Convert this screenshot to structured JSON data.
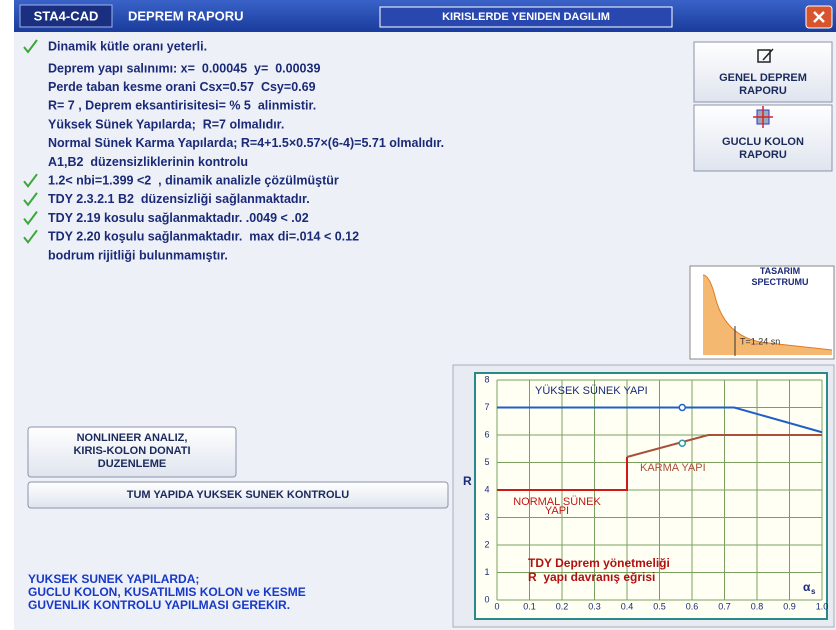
{
  "window": {
    "app": "STA4-CAD",
    "title": "DEPREM RAPORU",
    "tab": "KIRISLERDE YENIDEN DAGILIM"
  },
  "report_lines": [
    {
      "text": "Dinamik kütle oranı yeterli.",
      "check": true
    },
    {
      "text": "Deprem yapı salınımı: x=  0.00045  y=  0.00039",
      "check": false
    },
    {
      "text": "Perde taban kesme orani Csx=0.57  Csy=0.69",
      "check": false
    },
    {
      "text": "R= 7 , Deprem eksantirisitesi= % 5  alinmistir.",
      "check": false
    },
    {
      "text": "Yüksek Sünek Yapılarda;  R=7 olmalıdır.",
      "check": false
    },
    {
      "text": "Normal Sünek Karma Yapılarda; R=4+1.5×0.57×(6-4)=5.71 olmalıdır.",
      "check": false
    },
    {
      "text": "A1,B2  düzensizliklerinin kontrolu",
      "check": false
    },
    {
      "text": "1.2< nbi=1.399 <2  , dinamik analizle çözülmüştür",
      "check": true
    },
    {
      "text": "TDY 2.3.2.1 B2  düzensizliği sağlanmaktadır.",
      "check": true
    },
    {
      "text": "TDY 2.19 kosulu sağlanmaktadır. .0049 < .02",
      "check": true
    },
    {
      "text": "TDY 2.20 koşulu sağlanmaktadır.  max di=.014 < 0.12",
      "check": true
    },
    {
      "text": "bodrum rijitliği bulunmamıştır.",
      "check": false
    }
  ],
  "buttons": {
    "genel": [
      "GENEL DEPREM",
      "RAPORU"
    ],
    "guclu": [
      "GUCLU KOLON",
      "RAPORU"
    ],
    "nonlineer": [
      "NONLINEER ANALIZ,",
      "KIRIS-KOLON DONATI",
      "DUZENLEME"
    ],
    "tum": "TUM YAPIDA YUKSEK SUNEK KONTROLU"
  },
  "spectrum": {
    "title": [
      "TASARIM",
      "SPECTRUMU"
    ],
    "period_label": "T=1.24 sn"
  },
  "footer_note": [
    "YUKSEK SUNEK YAPILARDA;",
    "GUCLU KOLON, KUSATILMIS KOLON ve KESME",
    "GUVENLIK KONTROLU YAPILMASI GEREKIR."
  ],
  "chart_data": {
    "type": "line",
    "title": [
      "TDY Deprem yönetmeliği",
      "R  yapı davranış eğrisi"
    ],
    "y_label": "R",
    "x_label": "α",
    "x_label_sub": "s",
    "xlim": [
      0,
      1
    ],
    "xticks": [
      0,
      0.1,
      0.2,
      0.3,
      0.4,
      0.5,
      0.6,
      0.7,
      0.8,
      0.9,
      {
        "value": 1,
        "label": "1.0"
      }
    ],
    "ylim": [
      0,
      8
    ],
    "yticks": [
      0,
      1,
      2,
      3,
      4,
      5,
      6,
      7,
      8
    ],
    "grid": true,
    "series": [
      {
        "color": "#1f5fc8",
        "x": [
          0,
          0.73,
          1
        ],
        "values": [
          7,
          7,
          6.1
        ]
      },
      {
        "color": "#d01818",
        "x": [
          0,
          0.4,
          0.4
        ],
        "values": [
          4,
          4,
          5.2
        ]
      },
      {
        "color": "#a8503a",
        "x": [
          0.4,
          0.65,
          1
        ],
        "values": [
          5.2,
          6,
          6
        ]
      }
    ],
    "points": [
      {
        "x": 0.57,
        "y": 7,
        "color": "#1f5fc8"
      },
      {
        "x": 0.57,
        "y": 5.7,
        "color": "#2a9aa8"
      }
    ],
    "annotations": [
      "YÜKSEK SÜNEK YAPI",
      "KARMA YAPI",
      "NORMAL SÜNEK",
      "YAPI"
    ]
  }
}
